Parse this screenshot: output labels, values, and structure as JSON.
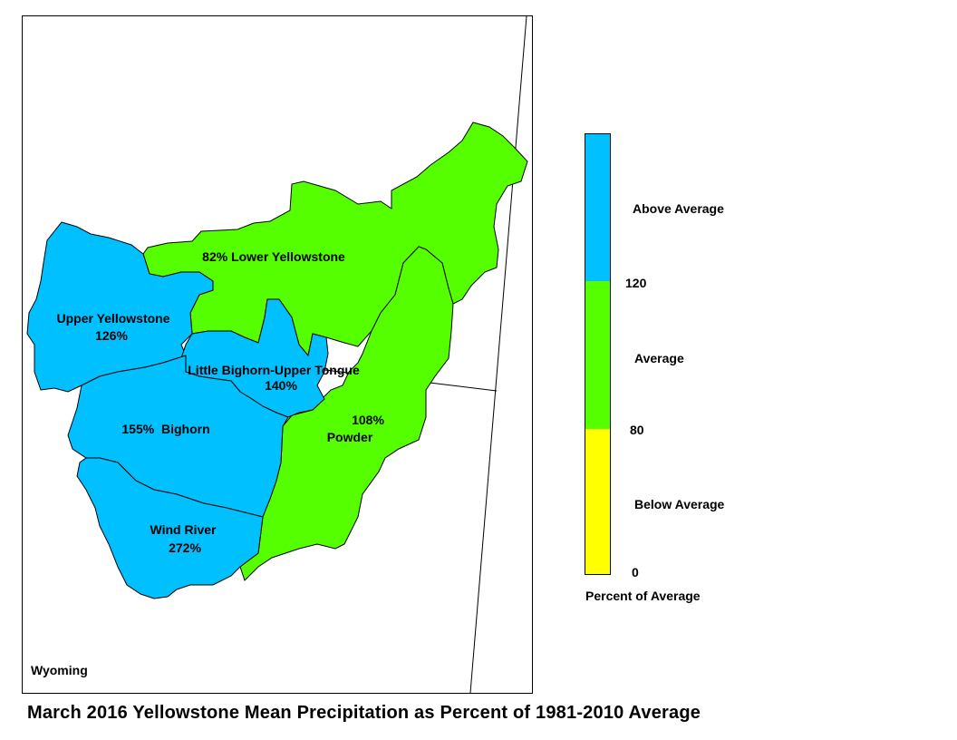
{
  "title": "March 2016 Yellowstone Mean Precipitation as Percent of 1981-2010 Average",
  "state_label": "Wyoming",
  "colors": {
    "above": "#00c0ff",
    "average": "#55ff00",
    "below": "#ffff00"
  },
  "basins": [
    {
      "name": "Lower Yellowstone",
      "percent": "82%",
      "category": "average",
      "label": "82% Lower Yellowstone"
    },
    {
      "name": "Upper Yellowstone",
      "percent": "126%",
      "category": "above",
      "label": "Upper Yellowstone",
      "value_label": "126%"
    },
    {
      "name": "Little Bighorn-Upper Tongue",
      "percent": "140%",
      "category": "above",
      "label": "Little Bighorn-Upper Tongue",
      "value_label": "140%"
    },
    {
      "name": "Powder",
      "percent": "108%",
      "category": "average",
      "label": "Powder",
      "value_label": "108%"
    },
    {
      "name": "Bighorn",
      "percent": "155%",
      "category": "above",
      "label": "155%  Bighorn"
    },
    {
      "name": "Wind River",
      "percent": "272%",
      "category": "above",
      "label": "Wind River",
      "value_label": "272%"
    }
  ],
  "legend": {
    "title": "Percent of Average",
    "classes": [
      {
        "label": "Above Average",
        "color": "#00c0ff",
        "range": [
          120,
          null
        ]
      },
      {
        "label": "Average",
        "color": "#55ff00",
        "range": [
          80,
          120
        ]
      },
      {
        "label": "Below Average",
        "color": "#ffff00",
        "range": [
          0,
          80
        ]
      }
    ],
    "breaks": [
      "120",
      "80",
      "0"
    ]
  }
}
